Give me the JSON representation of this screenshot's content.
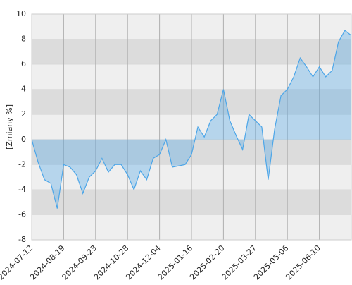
{
  "chart_data": {
    "type": "area",
    "y_label": "[Zmiany %]",
    "categories": [
      "2024-07-12",
      null,
      null,
      null,
      null,
      "2024-08-19",
      null,
      null,
      null,
      null,
      "2024-09-23",
      null,
      null,
      null,
      null,
      "2024-10-28",
      null,
      null,
      null,
      null,
      "2024-12-04",
      null,
      null,
      null,
      null,
      "2025-01-16",
      null,
      null,
      null,
      null,
      "2025-02-20",
      null,
      null,
      null,
      null,
      "2025-03-27",
      null,
      null,
      null,
      null,
      "2025-05-06",
      null,
      null,
      null,
      null,
      "2025-06-10",
      null,
      null,
      null,
      null,
      null
    ],
    "series": [
      {
        "name": "Zmiany",
        "color": "#4da6e8",
        "values": [
          0,
          -1.8,
          -3.2,
          -3.5,
          -5.5,
          -2.0,
          -2.2,
          -2.8,
          -4.3,
          -3.0,
          -2.5,
          -1.5,
          -2.6,
          -2.0,
          -2.0,
          -2.8,
          -4.0,
          -2.5,
          -3.2,
          -1.5,
          -1.2,
          0.0,
          -2.2,
          -2.1,
          -2.0,
          -1.2,
          1.0,
          0.2,
          1.5,
          2.0,
          4.0,
          1.5,
          0.3,
          -0.8,
          2.0,
          1.5,
          1.0,
          -3.2,
          0.8,
          3.5,
          4.0,
          5.0,
          6.5,
          5.8,
          5.0,
          5.8,
          5.0,
          5.5,
          7.8,
          8.7,
          8.3
        ]
      }
    ],
    "ylim": [
      -8,
      10
    ],
    "yticks": [
      -8,
      -6,
      -4,
      -2,
      0,
      2,
      4,
      6,
      8,
      10
    ],
    "grid": true
  }
}
